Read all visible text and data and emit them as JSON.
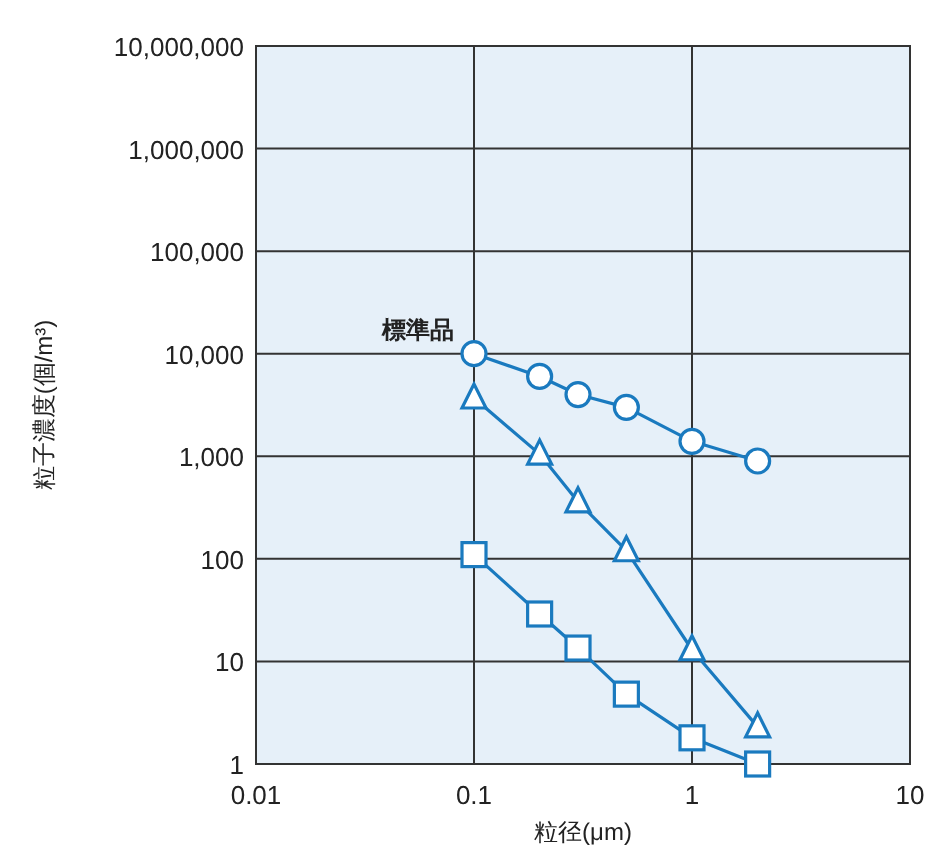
{
  "chart_data": {
    "type": "line",
    "xlabel": "粒径(μm)",
    "ylabel": "粒子濃度(個/m³)",
    "log": "xy",
    "grid": true,
    "xlim": [
      0.01,
      10
    ],
    "xticks": [
      0.01,
      0.1,
      1,
      10
    ],
    "ylim": [
      1,
      10000000
    ],
    "yticks": [
      {
        "value": 1,
        "label": "1"
      },
      {
        "value": 10,
        "label": "10"
      },
      {
        "value": 100,
        "label": "100"
      },
      {
        "value": 1000,
        "label": "1,000"
      },
      {
        "value": 10000,
        "label": "10,000"
      },
      {
        "value": 100000,
        "label": "100,000"
      },
      {
        "value": 1000000,
        "label": "1,000,000"
      },
      {
        "value": 10000000,
        "label": "10,000,000"
      }
    ],
    "series": [
      {
        "name": "標準品",
        "color": "#1a7abf",
        "marker": "circle",
        "x": [
          0.1,
          0.2,
          0.3,
          0.5,
          1,
          2
        ],
        "values": [
          10000,
          6000,
          4000,
          3000,
          1400,
          900
        ]
      },
      {
        "color": "#1a7abf",
        "marker": "triangle",
        "x": [
          0.1,
          0.2,
          0.3,
          0.5,
          1,
          2
        ],
        "values": [
          3700,
          1050,
          360,
          120,
          13,
          2.3
        ]
      },
      {
        "color": "#1a7abf",
        "marker": "square",
        "x": [
          0.1,
          0.2,
          0.3,
          0.5,
          1,
          2
        ],
        "values": [
          110,
          29,
          13.5,
          4.8,
          1.8,
          1
        ]
      }
    ]
  }
}
